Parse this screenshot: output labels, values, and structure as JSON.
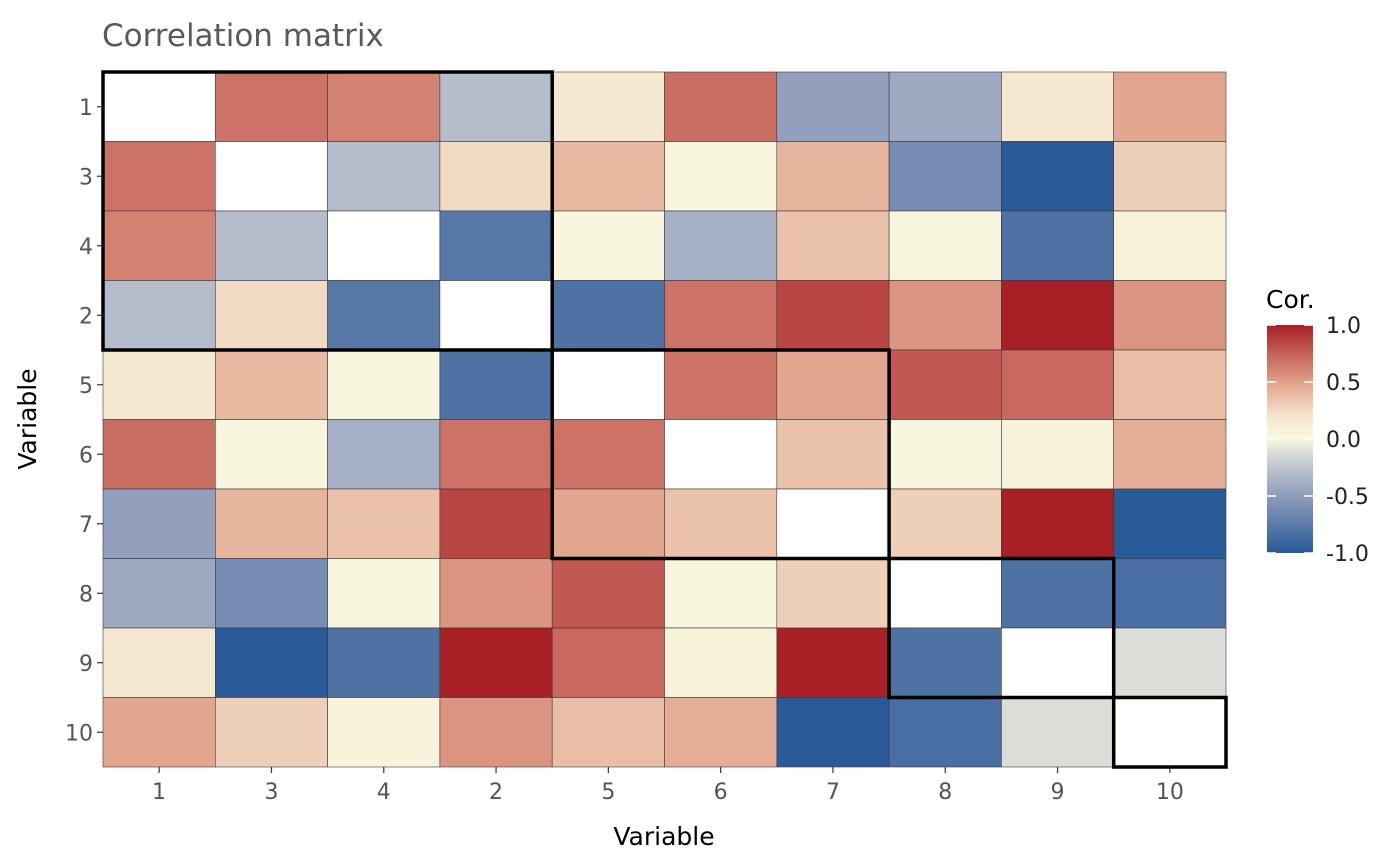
{
  "chart_data": {
    "type": "heatmap",
    "title": "Correlation matrix",
    "xlabel": "Variable",
    "ylabel": "Variable",
    "order": [
      "1",
      "3",
      "4",
      "2",
      "5",
      "6",
      "7",
      "8",
      "9",
      "10"
    ],
    "values": [
      [
        null,
        0.68,
        0.62,
        -0.3,
        0.18,
        0.7,
        -0.48,
        -0.42,
        0.18,
        0.48
      ],
      [
        0.68,
        null,
        -0.3,
        0.25,
        0.4,
        0.02,
        0.42,
        -0.62,
        -1.0,
        0.3
      ],
      [
        0.62,
        -0.3,
        null,
        -0.78,
        0.02,
        -0.38,
        0.36,
        0.04,
        -0.82,
        0.06
      ],
      [
        -0.3,
        0.25,
        -0.78,
        null,
        -0.82,
        0.68,
        0.85,
        0.55,
        1.0,
        0.55
      ],
      [
        0.18,
        0.4,
        0.02,
        -0.82,
        null,
        0.68,
        0.48,
        0.78,
        0.72,
        0.38
      ],
      [
        0.7,
        0.02,
        -0.38,
        0.68,
        0.68,
        null,
        0.36,
        0.02,
        0.06,
        0.45
      ],
      [
        -0.48,
        0.42,
        0.36,
        0.85,
        0.48,
        0.36,
        null,
        0.3,
        1.0,
        -1.0
      ],
      [
        -0.42,
        -0.62,
        0.04,
        0.55,
        0.78,
        0.02,
        0.3,
        null,
        -0.82,
        -0.85
      ],
      [
        0.18,
        -1.0,
        -0.82,
        1.0,
        0.72,
        0.06,
        1.0,
        -0.82,
        null,
        -0.12
      ],
      [
        0.48,
        0.3,
        0.06,
        0.55,
        0.38,
        0.45,
        -1.0,
        -0.85,
        -0.12,
        null
      ]
    ],
    "clusters": [
      {
        "members": [
          "1",
          "3",
          "4",
          "2"
        ]
      },
      {
        "members": [
          "5",
          "6",
          "7"
        ]
      },
      {
        "members": [
          "8",
          "9"
        ]
      },
      {
        "members": [
          "10"
        ]
      }
    ],
    "color_scale": {
      "title": "Cor.",
      "range": [
        -1.0,
        1.0
      ],
      "ticks": [
        "1.0",
        "0.5",
        "0.0",
        "-0.5",
        "-1.0"
      ],
      "tick_values": [
        1.0,
        0.5,
        0.0,
        -0.5,
        -1.0
      ],
      "stops": [
        {
          "value": -1.0,
          "color": "#2b5a98"
        },
        {
          "value": -0.5,
          "color": "#8e9cbb"
        },
        {
          "value": -0.2,
          "color": "#c7ccd3"
        },
        {
          "value": 0.0,
          "color": "#f8f8e0"
        },
        {
          "value": 0.2,
          "color": "#f5e6cf"
        },
        {
          "value": 0.5,
          "color": "#e1a18a"
        },
        {
          "value": 1.0,
          "color": "#a81f25"
        }
      ],
      "diagonal_color": "#ffffff"
    },
    "legend_position": "right",
    "grid": false
  }
}
